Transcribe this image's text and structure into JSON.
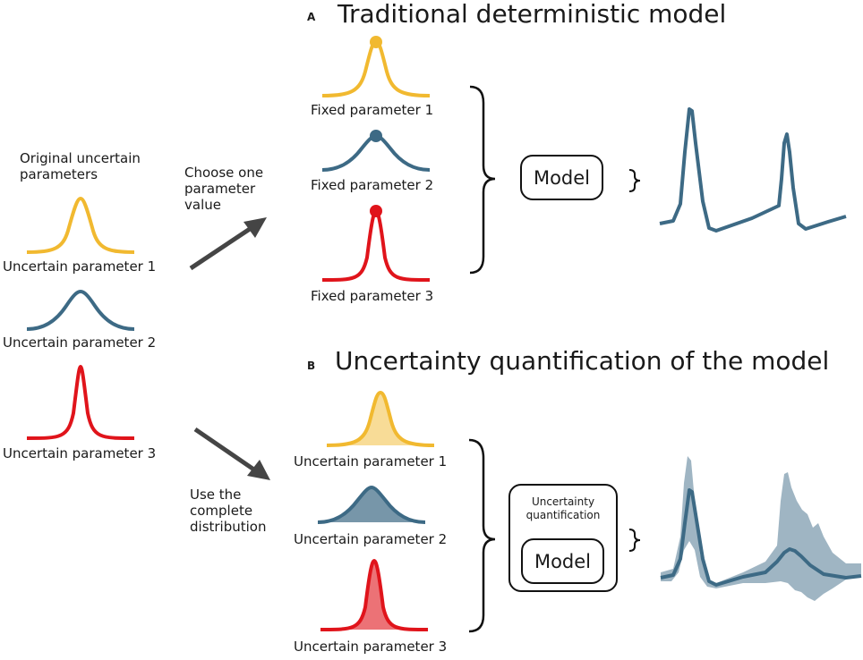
{
  "panel_a": {
    "letter": "A",
    "title": "Traditional deterministic model",
    "fixed_labels": [
      "Fixed parameter 1",
      "Fixed parameter 2",
      "Fixed parameter 3"
    ],
    "model_label": "Model"
  },
  "panel_b": {
    "letter": "B",
    "title": "Uncertainty quantification of the model",
    "uncertain_labels": [
      "Uncertain parameter 1",
      "Uncertain parameter 2",
      "Uncertain parameter 3"
    ],
    "uq_label": "Uncertainty\nquantification",
    "model_label": "Model"
  },
  "left": {
    "heading": "Original uncertain\nparameters",
    "labels": [
      "Uncertain parameter 1",
      "Uncertain parameter 2",
      "Uncertain parameter 3"
    ]
  },
  "arrows": {
    "choose": "Choose one\nparameter\nvalue",
    "use": "Use the\ncomplete\ndistribution"
  },
  "colors": {
    "param1": "#f1b930",
    "param2": "#3d6a85",
    "param3": "#e0141b",
    "output": "#3d6a85",
    "band": "#8ea8b8"
  }
}
